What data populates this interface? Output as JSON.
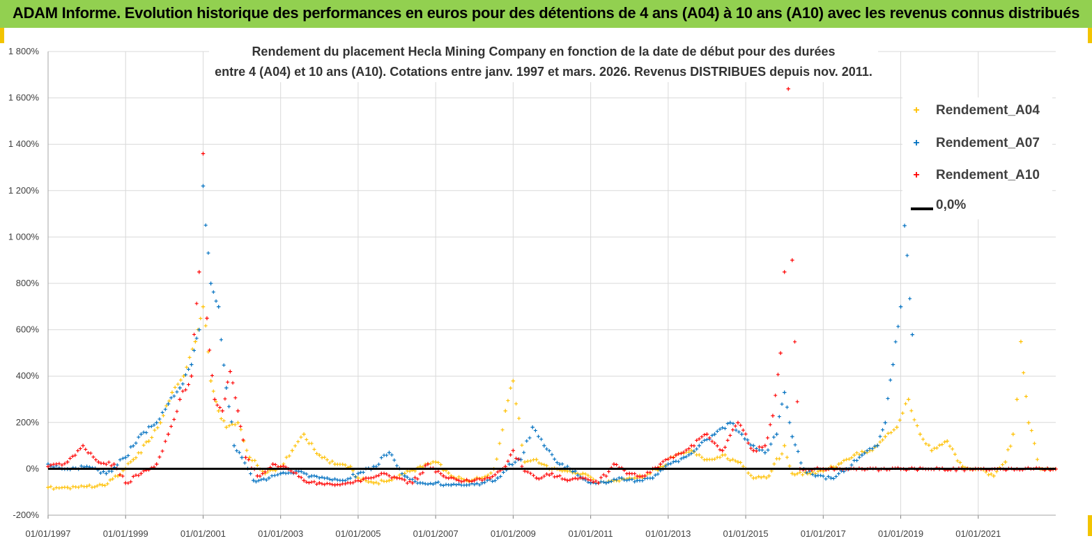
{
  "header": {
    "title": "ADAM Informe. Evolution historique des performances en euros pour des détentions de 4 ans (A04) à 10 ans (A10) avec les revenus connus distribués"
  },
  "chart_data": {
    "type": "scatter",
    "title_line1": "Rendement du placement Hecla Mining Company en fonction de la date de début pour des durées",
    "title_line2": "entre 4 (A04) et 10 ans (A10).  Cotations entre janv. 1997 et mars. 2026. Revenus DISTRIBUES depuis nov. 2011.",
    "x_axis": {
      "min": 1997.0,
      "max": 2023.0,
      "tick_values": [
        1997,
        1999,
        2001,
        2003,
        2005,
        2007,
        2009,
        2011,
        2013,
        2015,
        2017,
        2019,
        2021
      ],
      "tick_labels": [
        "01/01/1997",
        "01/01/1999",
        "01/01/2001",
        "01/01/2003",
        "01/01/2005",
        "01/01/2007",
        "01/01/2009",
        "01/01/2011",
        "01/01/2013",
        "01/01/2015",
        "01/01/2017",
        "01/01/2019",
        "01/01/2021"
      ]
    },
    "y_axis": {
      "min": -200,
      "max": 1800,
      "step": 200,
      "tick_labels": [
        "-200%",
        "0%",
        "200%",
        "400%",
        "600%",
        "800%",
        "1 000%",
        "1 200%",
        "1 400%",
        "1 600%",
        "1 800%"
      ]
    },
    "zero_line": {
      "label": "0,0%",
      "value": 0,
      "color": "#000000"
    },
    "series": [
      {
        "name": "Rendement_A04",
        "color": "#ffc000",
        "x": [
          1997.0,
          1997.5,
          1998.0,
          1998.4,
          1998.8,
          1999.2,
          1999.6,
          1999.9,
          2000.2,
          2000.5,
          2000.8,
          2001.0,
          2001.2,
          2001.4,
          2001.6,
          2001.9,
          2002.2,
          2002.6,
          2003.0,
          2003.3,
          2003.6,
          2004.0,
          2004.4,
          2004.8,
          2005.0,
          2005.4,
          2005.8,
          2006.2,
          2006.6,
          2007.0,
          2007.4,
          2007.8,
          2008.2,
          2008.5,
          2008.8,
          2009.0,
          2009.3,
          2009.6,
          2010.0,
          2010.4,
          2010.8,
          2011.2,
          2011.6,
          2012.0,
          2012.4,
          2012.8,
          2013.2,
          2013.6,
          2014.0,
          2014.4,
          2014.8,
          2015.2,
          2015.6,
          2016.0,
          2016.2,
          2016.6,
          2017.0,
          2017.4,
          2017.8,
          2018.2,
          2018.6,
          2018.9,
          2019.2,
          2019.5,
          2019.8,
          2020.2,
          2020.6,
          2021.0,
          2021.4,
          2021.7,
          2021.9,
          2022.0,
          2022.1,
          2022.3,
          2022.6,
          2023.0
        ],
        "y": [
          -80,
          -80,
          -75,
          -70,
          -30,
          40,
          120,
          200,
          330,
          400,
          550,
          700,
          380,
          250,
          180,
          200,
          50,
          -20,
          10,
          80,
          150,
          60,
          20,
          10,
          -40,
          -60,
          -50,
          -20,
          10,
          30,
          -30,
          -50,
          -40,
          0,
          250,
          380,
          30,
          40,
          0,
          -10,
          -20,
          -60,
          -50,
          -40,
          -30,
          10,
          60,
          80,
          40,
          60,
          30,
          -40,
          -30,
          100,
          -20,
          -20,
          -10,
          20,
          60,
          80,
          140,
          180,
          300,
          150,
          80,
          120,
          10,
          0,
          -30,
          30,
          150,
          300,
          550,
          200,
          0,
          0
        ]
      },
      {
        "name": "Rendement_A07",
        "color": "#0070c0",
        "x": [
          1997.0,
          1997.5,
          1998.0,
          1998.5,
          1999.0,
          1999.4,
          1999.8,
          2000.1,
          2000.4,
          2000.7,
          2000.9,
          2001.0,
          2001.2,
          2001.4,
          2001.6,
          2001.8,
          2002.0,
          2002.3,
          2002.7,
          2003.0,
          2003.4,
          2003.8,
          2004.2,
          2004.6,
          2005.0,
          2005.4,
          2005.8,
          2006.2,
          2006.6,
          2007.0,
          2007.4,
          2007.8,
          2008.2,
          2008.6,
          2008.9,
          2009.2,
          2009.5,
          2009.8,
          2010.2,
          2010.6,
          2011.0,
          2011.4,
          2011.8,
          2012.2,
          2012.6,
          2013.0,
          2013.4,
          2013.8,
          2014.2,
          2014.6,
          2014.9,
          2015.2,
          2015.5,
          2015.8,
          2016.0,
          2016.2,
          2016.5,
          2016.8,
          2017.2,
          2017.6,
          2018.0,
          2018.4,
          2018.6,
          2018.8,
          2019.0,
          2019.1,
          2019.3
        ],
        "y": [
          20,
          0,
          10,
          -20,
          50,
          150,
          200,
          280,
          350,
          450,
          600,
          1220,
          800,
          700,
          350,
          100,
          50,
          -50,
          -40,
          -20,
          -10,
          -30,
          -40,
          -50,
          -20,
          10,
          70,
          -30,
          -60,
          -60,
          -70,
          -70,
          -60,
          -40,
          20,
          40,
          180,
          100,
          20,
          -10,
          -60,
          -60,
          -40,
          -50,
          -40,
          20,
          50,
          100,
          150,
          200,
          150,
          100,
          70,
          150,
          330,
          140,
          0,
          -30,
          -40,
          0,
          60,
          100,
          200,
          450,
          700,
          1050,
          580
        ]
      },
      {
        "name": "Rendement_A10",
        "color": "#ff0000",
        "x": [
          1997.0,
          1997.5,
          1997.9,
          1998.3,
          1998.7,
          1999.0,
          1999.4,
          1999.8,
          2000.1,
          2000.4,
          2000.7,
          2000.9,
          2001.0,
          2001.1,
          2001.3,
          2001.5,
          2001.7,
          2001.9,
          2002.1,
          2002.4,
          2002.8,
          2003.2,
          2003.6,
          2004.0,
          2004.4,
          2004.8,
          2005.2,
          2005.6,
          2006.0,
          2006.4,
          2006.8,
          2007.2,
          2007.6,
          2008.0,
          2008.4,
          2008.8,
          2009.0,
          2009.3,
          2009.6,
          2010.0,
          2010.4,
          2010.8,
          2011.2,
          2011.6,
          2012.0,
          2012.4,
          2012.8,
          2013.2,
          2013.6,
          2014.0,
          2014.4,
          2014.8,
          2015.2,
          2015.5,
          2015.7,
          2015.9,
          2016.0,
          2016.1,
          2016.2,
          2016.4,
          2017.0,
          2018.0,
          2019.0,
          2020.0,
          2021.0,
          2022.0,
          2023.0
        ],
        "y": [
          10,
          30,
          100,
          30,
          20,
          -60,
          -20,
          20,
          150,
          300,
          400,
          850,
          1360,
          650,
          300,
          250,
          420,
          250,
          50,
          -30,
          20,
          0,
          -50,
          -60,
          -70,
          -60,
          -40,
          -20,
          -40,
          -60,
          20,
          -30,
          -50,
          -50,
          -40,
          10,
          80,
          -10,
          -40,
          -20,
          -50,
          -40,
          -60,
          20,
          -20,
          -30,
          20,
          60,
          100,
          150,
          80,
          200,
          80,
          100,
          230,
          500,
          850,
          1640,
          900,
          0,
          0,
          0,
          0,
          0,
          0,
          0,
          0
        ]
      }
    ]
  }
}
